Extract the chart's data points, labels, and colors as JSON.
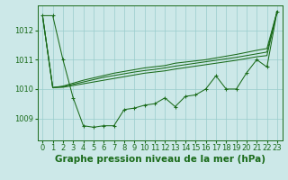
{
  "background_color": "#cce8e8",
  "grid_color": "#99cccc",
  "line_color": "#1a6b1a",
  "xlabel": "Graphe pression niveau de la mer (hPa)",
  "xlabel_fontsize": 7.5,
  "tick_fontsize": 6,
  "ylim": [
    1008.25,
    1012.85
  ],
  "xlim": [
    -0.5,
    23.5
  ],
  "yticks": [
    1009,
    1010,
    1011,
    1012
  ],
  "xticks": [
    0,
    1,
    2,
    3,
    4,
    5,
    6,
    7,
    8,
    9,
    10,
    11,
    12,
    13,
    14,
    15,
    16,
    17,
    18,
    19,
    20,
    21,
    22,
    23
  ],
  "series": {
    "main": [
      1012.5,
      1012.5,
      1011.0,
      1009.7,
      1008.75,
      1008.7,
      1008.75,
      1008.75,
      1009.3,
      1009.35,
      1009.45,
      1009.5,
      1009.7,
      1009.4,
      1009.75,
      1009.8,
      1010.0,
      1010.45,
      1010.0,
      1010.0,
      1010.55,
      1011.0,
      1010.75,
      1012.65
    ],
    "trend_high": [
      1012.5,
      1010.05,
      1010.1,
      1010.2,
      1010.3,
      1010.38,
      1010.46,
      1010.54,
      1010.6,
      1010.66,
      1010.72,
      1010.76,
      1010.8,
      1010.88,
      1010.92,
      1010.96,
      1011.0,
      1011.06,
      1011.12,
      1011.18,
      1011.25,
      1011.32,
      1011.38,
      1012.65
    ],
    "trend_mid": [
      1012.5,
      1010.05,
      1010.08,
      1010.16,
      1010.24,
      1010.32,
      1010.4,
      1010.46,
      1010.52,
      1010.58,
      1010.63,
      1010.67,
      1010.72,
      1010.78,
      1010.83,
      1010.88,
      1010.93,
      1010.98,
      1011.03,
      1011.08,
      1011.14,
      1011.2,
      1011.26,
      1012.65
    ],
    "trend_low": [
      1012.5,
      1010.05,
      1010.06,
      1010.12,
      1010.18,
      1010.24,
      1010.3,
      1010.36,
      1010.42,
      1010.48,
      1010.54,
      1010.58,
      1010.62,
      1010.68,
      1010.73,
      1010.78,
      1010.83,
      1010.88,
      1010.93,
      1010.98,
      1011.04,
      1011.1,
      1011.14,
      1012.65
    ]
  }
}
